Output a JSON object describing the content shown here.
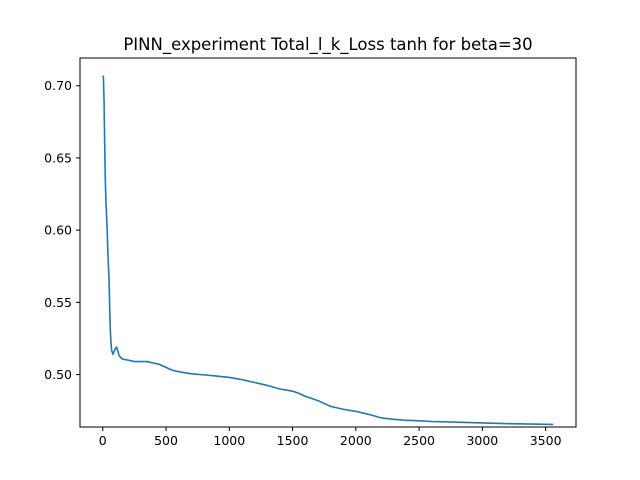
{
  "chart_data": {
    "type": "line",
    "title": "PINN_experiment Total_l_k_Loss tanh for beta=30",
    "xlabel": "",
    "ylabel": "",
    "xlim": [
      -180,
      3740
    ],
    "ylim": [
      0.4637,
      0.7192
    ],
    "grid": false,
    "line_color": "#1f77b4",
    "xticks": [
      0,
      500,
      1000,
      1500,
      2000,
      2500,
      3000,
      3500
    ],
    "xtick_labels": [
      "0",
      "500",
      "1000",
      "1500",
      "2000",
      "2500",
      "3000",
      "3500"
    ],
    "yticks": [
      0.5,
      0.55,
      0.6,
      0.65,
      0.7
    ],
    "ytick_labels": [
      "0.50",
      "0.55",
      "0.60",
      "0.65",
      "0.70"
    ],
    "series": [
      {
        "x": [
          0,
          5,
          10,
          15,
          20,
          25,
          30,
          35,
          40,
          45,
          50,
          55,
          60,
          65,
          70,
          80,
          90,
          100,
          110,
          120,
          130,
          140,
          150,
          170,
          200,
          250,
          300,
          350,
          400,
          450,
          500,
          550,
          600,
          700,
          800,
          900,
          1000,
          1100,
          1200,
          1300,
          1400,
          1500,
          1550,
          1600,
          1700,
          1800,
          1900,
          2000,
          2100,
          2200,
          2300,
          2400,
          2500,
          2600,
          2800,
          3000,
          3200,
          3400,
          3560
        ],
        "values": [
          0.707,
          0.706,
          0.69,
          0.66,
          0.635,
          0.62,
          0.61,
          0.6,
          0.585,
          0.575,
          0.565,
          0.545,
          0.53,
          0.522,
          0.517,
          0.514,
          0.516,
          0.518,
          0.519,
          0.516,
          0.513,
          0.512,
          0.511,
          0.5105,
          0.51,
          0.509,
          0.509,
          0.509,
          0.508,
          0.507,
          0.505,
          0.503,
          0.502,
          0.5005,
          0.4998,
          0.499,
          0.498,
          0.4965,
          0.4945,
          0.4925,
          0.49,
          0.4885,
          0.487,
          0.485,
          0.482,
          0.478,
          0.476,
          0.4745,
          0.4725,
          0.47,
          0.469,
          0.4683,
          0.468,
          0.4675,
          0.467,
          0.4665,
          0.466,
          0.4657,
          0.4655
        ]
      }
    ]
  }
}
